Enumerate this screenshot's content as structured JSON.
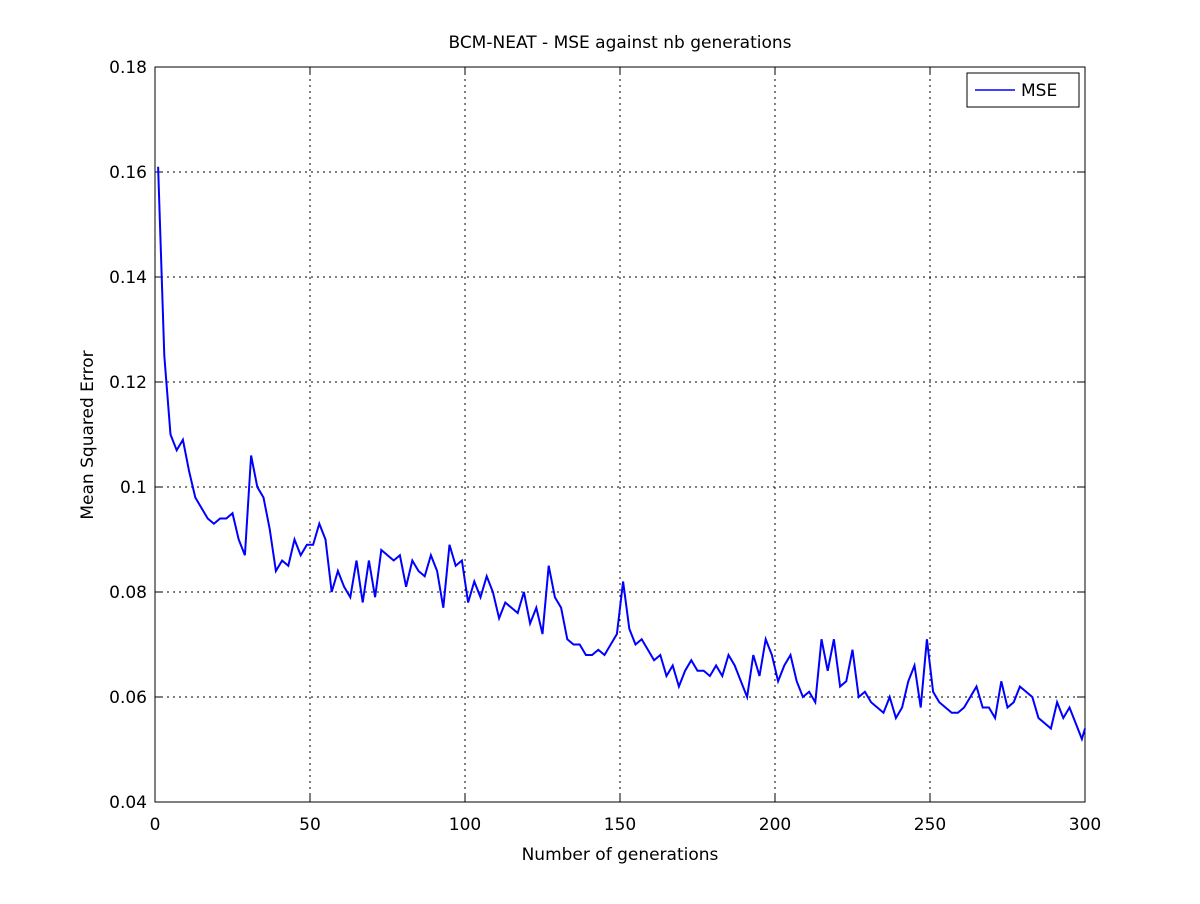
{
  "chart_data": {
    "type": "line",
    "title": "BCM-NEAT - MSE against nb generations",
    "x_label": "Number of generations",
    "y_label": "Mean Squared Error",
    "x": [
      1,
      3,
      5,
      7,
      9,
      11,
      13,
      15,
      17,
      19,
      21,
      23,
      25,
      27,
      29,
      31,
      33,
      35,
      37,
      39,
      41,
      43,
      45,
      47,
      49,
      51,
      53,
      55,
      57,
      59,
      61,
      63,
      65,
      67,
      69,
      71,
      73,
      75,
      77,
      79,
      81,
      83,
      85,
      87,
      89,
      91,
      93,
      95,
      97,
      99,
      101,
      103,
      105,
      107,
      109,
      111,
      113,
      115,
      117,
      119,
      121,
      123,
      125,
      127,
      129,
      131,
      133,
      135,
      137,
      139,
      141,
      143,
      145,
      147,
      149,
      151,
      153,
      155,
      157,
      159,
      161,
      163,
      165,
      167,
      169,
      171,
      173,
      175,
      177,
      179,
      181,
      183,
      185,
      187,
      189,
      191,
      193,
      195,
      197,
      199,
      201,
      203,
      205,
      207,
      209,
      211,
      213,
      215,
      217,
      219,
      221,
      223,
      225,
      227,
      229,
      231,
      233,
      235,
      237,
      239,
      241,
      243,
      245,
      247,
      249,
      251,
      253,
      255,
      257,
      259,
      261,
      263,
      265,
      267,
      269,
      271,
      273,
      275,
      277,
      279,
      281,
      283,
      285,
      287,
      289,
      291,
      293,
      295,
      297,
      299,
      300
    ],
    "series": [
      {
        "name": "MSE",
        "color": "#0000ff",
        "values": [
          0.161,
          0.125,
          0.11,
          0.107,
          0.109,
          0.103,
          0.098,
          0.096,
          0.094,
          0.093,
          0.094,
          0.094,
          0.095,
          0.09,
          0.087,
          0.106,
          0.1,
          0.098,
          0.092,
          0.084,
          0.086,
          0.085,
          0.09,
          0.087,
          0.089,
          0.089,
          0.093,
          0.09,
          0.08,
          0.084,
          0.081,
          0.079,
          0.086,
          0.078,
          0.086,
          0.079,
          0.088,
          0.087,
          0.086,
          0.087,
          0.081,
          0.086,
          0.084,
          0.083,
          0.087,
          0.084,
          0.077,
          0.089,
          0.085,
          0.086,
          0.078,
          0.082,
          0.079,
          0.083,
          0.08,
          0.075,
          0.078,
          0.077,
          0.076,
          0.08,
          0.074,
          0.077,
          0.072,
          0.085,
          0.079,
          0.077,
          0.071,
          0.07,
          0.07,
          0.068,
          0.068,
          0.069,
          0.068,
          0.07,
          0.072,
          0.082,
          0.073,
          0.07,
          0.071,
          0.069,
          0.067,
          0.068,
          0.064,
          0.066,
          0.062,
          0.065,
          0.067,
          0.065,
          0.065,
          0.064,
          0.066,
          0.064,
          0.068,
          0.066,
          0.063,
          0.06,
          0.068,
          0.064,
          0.071,
          0.068,
          0.063,
          0.066,
          0.068,
          0.063,
          0.06,
          0.061,
          0.059,
          0.071,
          0.065,
          0.071,
          0.062,
          0.063,
          0.069,
          0.06,
          0.061,
          0.059,
          0.058,
          0.057,
          0.06,
          0.056,
          0.058,
          0.063,
          0.066,
          0.058,
          0.071,
          0.061,
          0.059,
          0.058,
          0.057,
          0.057,
          0.058,
          0.06,
          0.062,
          0.058,
          0.058,
          0.056,
          0.063,
          0.058,
          0.059,
          0.062,
          0.061,
          0.06,
          0.056,
          0.055,
          0.054,
          0.059,
          0.056,
          0.058,
          0.055,
          0.052,
          0.054
        ]
      }
    ],
    "xlim": [
      0,
      300
    ],
    "xticks": [
      0,
      50,
      100,
      150,
      200,
      250,
      300
    ],
    "ylim": [
      0.04,
      0.18
    ],
    "yticks": [
      0.04,
      0.06,
      0.08,
      0.1,
      0.12,
      0.14,
      0.16,
      0.18
    ],
    "grid": true,
    "legend": "upper right"
  }
}
